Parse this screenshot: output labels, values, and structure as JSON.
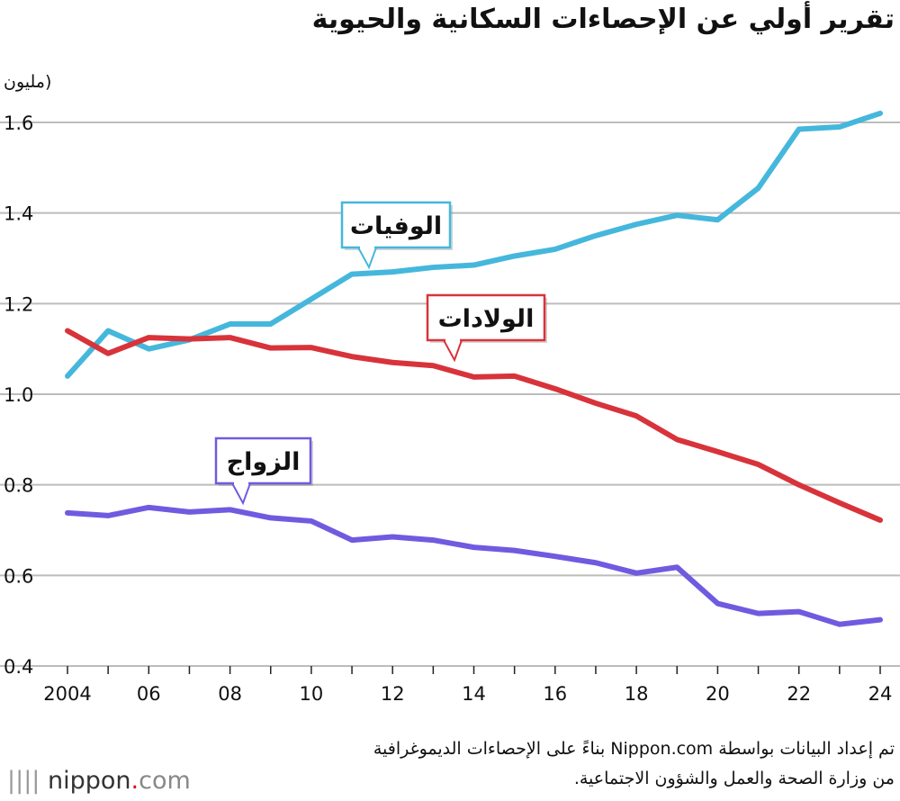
{
  "chart_data": {
    "type": "line",
    "title": "تقرير أولي عن الإحصاءات السكانية والحيوية",
    "unit_label": "(مليون",
    "x": [
      2004,
      2005,
      2006,
      2007,
      2008,
      2009,
      2010,
      2011,
      2012,
      2013,
      2014,
      2015,
      2016,
      2017,
      2018,
      2019,
      2020,
      2021,
      2022,
      2023,
      2024
    ],
    "x_tick_labels": [
      "2004",
      "06",
      "08",
      "10",
      "12",
      "14",
      "16",
      "18",
      "20",
      "22",
      "24"
    ],
    "y_tick_labels": [
      "0.4",
      "0.6",
      "0.8",
      "1.0",
      "1.2",
      "1.4",
      "1.6"
    ],
    "ylim": [
      0.4,
      1.6
    ],
    "grid": true,
    "series": [
      {
        "name": "الوفيات",
        "color": "#45b7dc",
        "values": [
          1.04,
          1.14,
          1.1,
          1.12,
          1.155,
          1.155,
          1.21,
          1.265,
          1.27,
          1.28,
          1.285,
          1.305,
          1.32,
          1.35,
          1.375,
          1.395,
          1.385,
          1.455,
          1.585,
          1.59,
          1.62
        ]
      },
      {
        "name": "الولادات",
        "color": "#d8333a",
        "values": [
          1.14,
          1.09,
          1.125,
          1.122,
          1.125,
          1.102,
          1.103,
          1.083,
          1.07,
          1.063,
          1.038,
          1.04,
          1.012,
          0.98,
          0.952,
          0.9,
          0.873,
          0.845,
          0.8,
          0.76,
          0.722
        ]
      },
      {
        "name": "الزواج",
        "color": "#6f5be0",
        "values": [
          0.738,
          0.732,
          0.75,
          0.74,
          0.745,
          0.727,
          0.72,
          0.678,
          0.685,
          0.678,
          0.662,
          0.655,
          0.642,
          0.628,
          0.605,
          0.618,
          0.538,
          0.516,
          0.52,
          0.492,
          0.502
        ]
      }
    ]
  },
  "source": {
    "line1": "تم إعداد البيانات بواسطة Nippon.com بناءً على الإحصاءات الديموغرافية",
    "line2": "من وزارة الصحة والعمل والشؤون الاجتماعية."
  },
  "logo": {
    "mark": "||||",
    "name": "nippon",
    "dot": ".",
    "tld": "com"
  }
}
